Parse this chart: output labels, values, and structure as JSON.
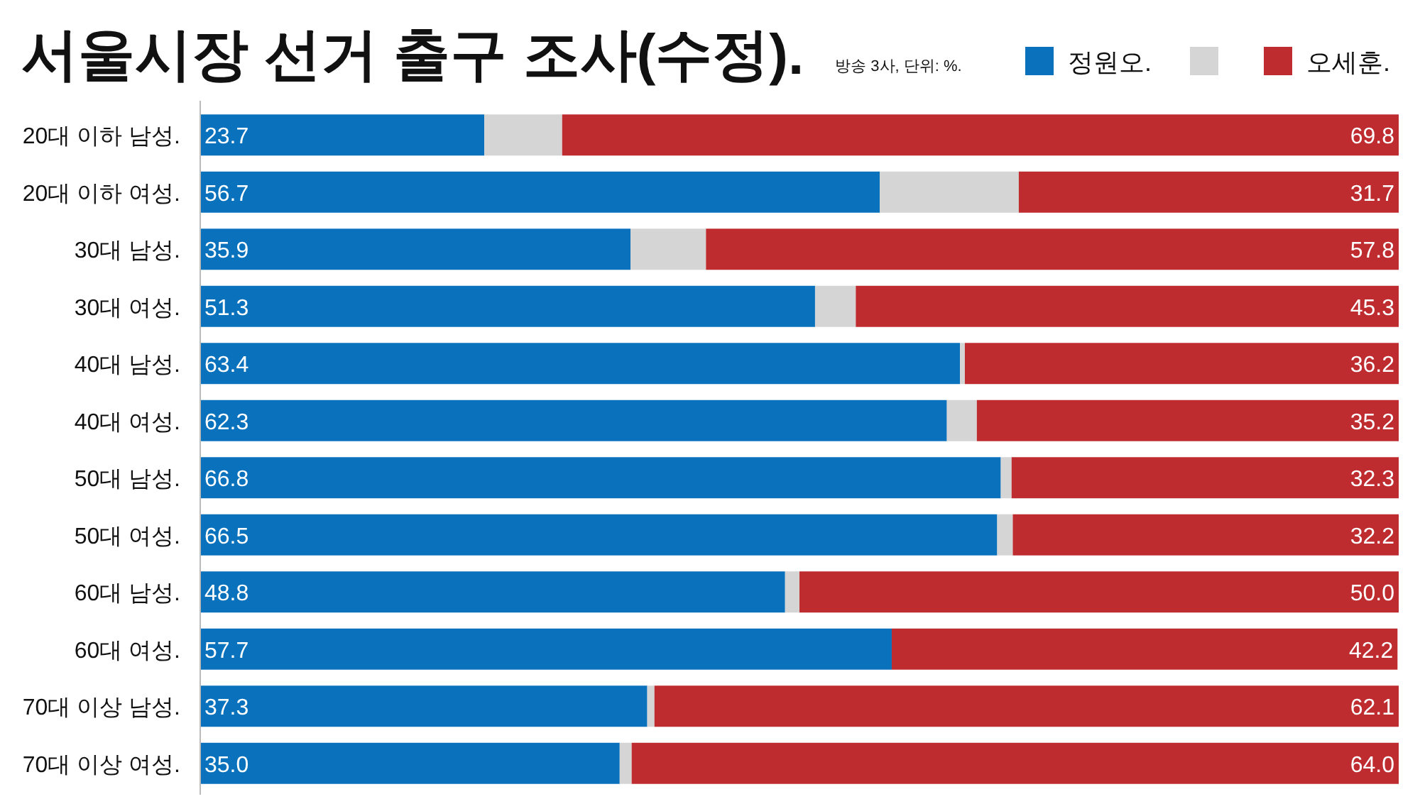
{
  "chart_data": {
    "type": "bar",
    "orientation": "horizontal",
    "stacked": true,
    "title": "서울시장 선거 출구 조사(수정).",
    "subtitle": "방송 3사, 단위: %.",
    "legend": "top right",
    "xlim": [
      0,
      100
    ],
    "categories": [
      "20대 이하 남성.",
      "20대 이하 여성.",
      "30대 남성.",
      "30대 여성.",
      "40대 남성.",
      "40대 여성.",
      "50대 남성.",
      "50대 여성.",
      "60대 남성.",
      "60대 여성.",
      "70대 이상 남성.",
      "70대 이상 여성."
    ],
    "series": [
      {
        "name": "정원오.",
        "color": "#0a72bd",
        "values": [
          23.7,
          56.7,
          35.9,
          51.3,
          63.4,
          62.3,
          66.8,
          66.5,
          48.8,
          57.7,
          37.3,
          35.0
        ],
        "value_labels": [
          "23.7",
          "56.7",
          "35.9",
          "51.3",
          "63.4",
          "62.3",
          "66.8",
          "66.5",
          "48.8",
          "57.7",
          "37.3",
          "35.0"
        ]
      },
      {
        "color": "#d5d5d5",
        "values": [
          6.5,
          11.6,
          6.3,
          3.4,
          0.4,
          2.5,
          0.9,
          1.3,
          1.2,
          null,
          0.6,
          1.0
        ]
      },
      {
        "name": "오세훈.",
        "color": "#bf2c2f",
        "values": [
          69.8,
          31.7,
          57.8,
          45.3,
          36.2,
          35.2,
          32.3,
          32.2,
          50.0,
          42.2,
          62.1,
          64.0
        ],
        "value_labels": [
          "69.8",
          "31.7",
          "57.8",
          "45.3",
          "36.2",
          "35.2",
          "32.3",
          "32.2",
          "50.0",
          "42.2",
          "62.1",
          "64.0"
        ]
      }
    ]
  }
}
